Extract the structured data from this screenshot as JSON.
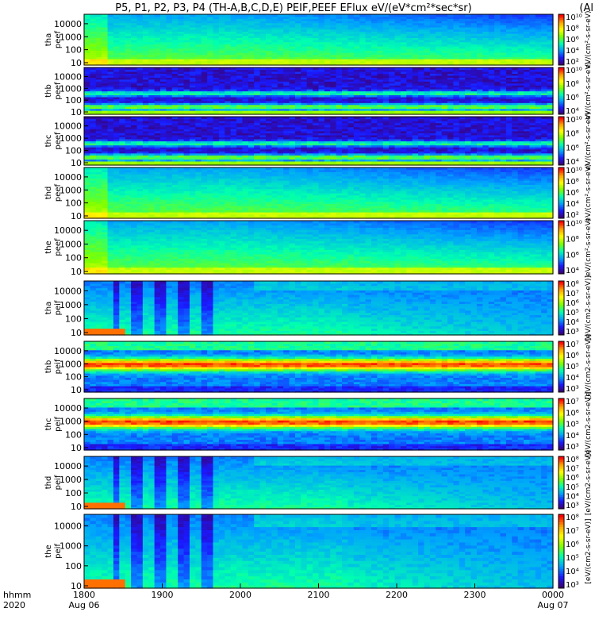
{
  "chart_data": {
    "type": "heatmap",
    "title": "P5, P1, P2, P3, P4 (TH-A,B,C,D,E) PEIF,PEEF EFlux eV/(eV*cm²*sec*sr)",
    "title_suffix": "(Al",
    "x_axis": {
      "row_label_1": "hhmm",
      "row_label_2": "2020",
      "tick_times": [
        "1800",
        "1900",
        "2000",
        "2100",
        "2200",
        "2300",
        "0000"
      ],
      "tick_dates": [
        "Aug 06",
        "",
        "",
        "",
        "",
        "",
        "Aug 07"
      ],
      "range_hours": [
        18,
        24
      ]
    },
    "colormap": [
      "#3b0070",
      "#1a1aff",
      "#00a0ff",
      "#00ffb0",
      "#7dff00",
      "#ffff00",
      "#ffa000",
      "#ff0000"
    ],
    "colorbar_label_electron": "eV/(cm²-s-sr-eV)",
    "colorbar_label_ion": "[eV/(cm2-s-sr-eV)]",
    "panels": [
      {
        "name": "tha peef",
        "line1": "tha",
        "line2": "peef",
        "species": "electron",
        "y_ticks": [
          "10",
          "100",
          "1000",
          "10000"
        ],
        "cb_ticks": [
          "10²",
          "10⁴",
          "10⁶",
          "10⁸",
          "10¹⁰"
        ],
        "cb_range": [
          2,
          10
        ],
        "pattern": "decay"
      },
      {
        "name": "thb peef",
        "line1": "thb",
        "line2": "peef",
        "species": "electron",
        "y_ticks": [
          "10",
          "100",
          "1000",
          "10000"
        ],
        "cb_ticks": [
          "10⁴",
          "10⁶",
          "10⁸",
          "10¹⁰"
        ],
        "cb_range": [
          3,
          11
        ],
        "pattern": "banded"
      },
      {
        "name": "thc peef",
        "line1": "thc",
        "line2": "peef",
        "species": "electron",
        "y_ticks": [
          "10",
          "100",
          "1000",
          "10000"
        ],
        "cb_ticks": [
          "10⁴",
          "10⁶",
          "10⁸",
          "10¹⁰"
        ],
        "cb_range": [
          3,
          11
        ],
        "pattern": "banded"
      },
      {
        "name": "thd peef",
        "line1": "thd",
        "line2": "peef",
        "species": "electron",
        "y_ticks": [
          "10",
          "100",
          "1000",
          "10000"
        ],
        "cb_ticks": [
          "10²",
          "10⁴",
          "10⁶",
          "10⁸",
          "10¹⁰"
        ],
        "cb_range": [
          2,
          10
        ],
        "pattern": "decay"
      },
      {
        "name": "the peef",
        "line1": "the",
        "line2": "peef",
        "species": "electron",
        "y_ticks": [
          "10",
          "100",
          "1000",
          "10000"
        ],
        "cb_ticks": [
          "10⁴",
          "10⁶",
          "10⁸",
          "10¹⁰"
        ],
        "cb_range": [
          3,
          11
        ],
        "pattern": "decay"
      },
      {
        "name": "tha peif",
        "line1": "tha",
        "line2": "peif",
        "species": "ion",
        "y_ticks": [
          "10",
          "100",
          "1000",
          "10000"
        ],
        "cb_ticks": [
          "10³",
          "10⁴",
          "10⁵",
          "10⁶",
          "10⁷",
          "10⁸"
        ],
        "cb_range": [
          2.5,
          8.5
        ],
        "pattern": "ion"
      },
      {
        "name": "thb peif",
        "line1": "thb",
        "line2": "peif",
        "species": "ion",
        "y_ticks": [
          "10",
          "100",
          "1000",
          "10000"
        ],
        "cb_ticks": [
          "10³",
          "10⁴",
          "10⁵",
          "10⁶",
          "10⁷"
        ],
        "cb_range": [
          2.5,
          7.5
        ],
        "pattern": "ionband"
      },
      {
        "name": "thc peif",
        "line1": "thc",
        "line2": "peif",
        "species": "ion",
        "y_ticks": [
          "10",
          "100",
          "1000",
          "10000"
        ],
        "cb_ticks": [
          "10³",
          "10⁴",
          "10⁵",
          "10⁶",
          "10⁷"
        ],
        "cb_range": [
          2.5,
          7.5
        ],
        "pattern": "ionband"
      },
      {
        "name": "thd peif",
        "line1": "thd",
        "line2": "peif",
        "species": "ion",
        "y_ticks": [
          "10",
          "100",
          "1000",
          "10000"
        ],
        "cb_ticks": [
          "10³",
          "10⁴",
          "10⁵",
          "10⁶",
          "10⁷",
          "10⁸"
        ],
        "cb_range": [
          2.5,
          8.5
        ],
        "pattern": "ion"
      },
      {
        "name": "the peif",
        "line1": "the",
        "line2": "peif",
        "species": "ion",
        "y_ticks": [
          "10",
          "100",
          "1000",
          "10000"
        ],
        "cb_ticks": [
          "10³",
          "10⁴",
          "10⁵",
          "10⁶",
          "10⁷",
          "10⁸"
        ],
        "cb_range": [
          2.5,
          8.5
        ],
        "pattern": "ion"
      }
    ]
  }
}
